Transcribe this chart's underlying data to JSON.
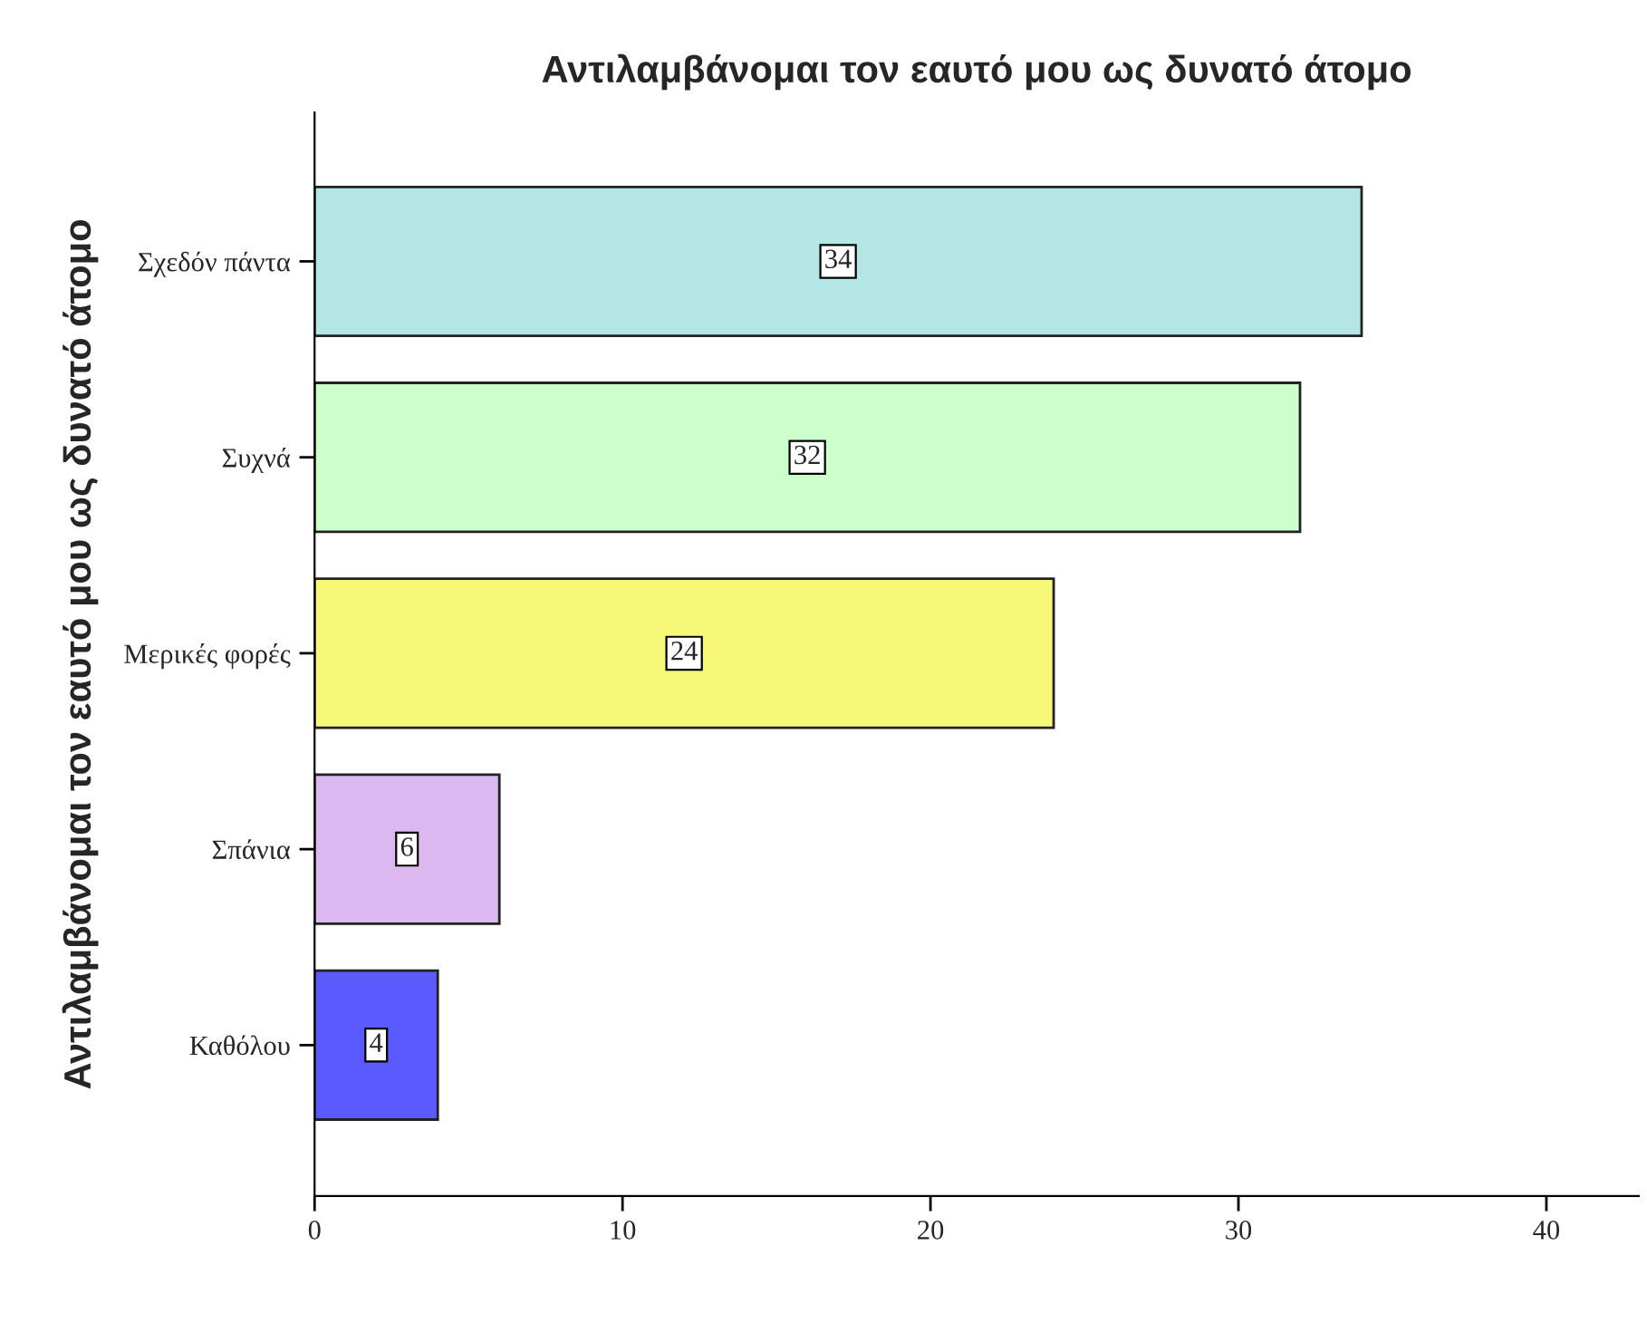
{
  "chart_data": {
    "type": "bar",
    "orientation": "horizontal",
    "title": "Αντιλαμβάνομαι τον εαυτό μου ως δυνατό άτομο",
    "ylabel": "Αντιλαμβάνομαι τον εαυτό μου ως δυνατό άτομο",
    "categories": [
      "Σχεδόν πάντα",
      "Συχνά",
      "Μερικές φορές",
      "Σπάνια",
      "Καθόλου"
    ],
    "values": [
      34,
      32,
      24,
      6,
      4
    ],
    "colors": [
      "#b4e6e6",
      "#ccffcc",
      "#f8f878",
      "#dcb8f0",
      "#5a5aff"
    ],
    "xlim": [
      0,
      43
    ],
    "xticks": [
      0,
      10,
      20,
      30,
      40
    ],
    "grid": false,
    "data_labels": true
  }
}
